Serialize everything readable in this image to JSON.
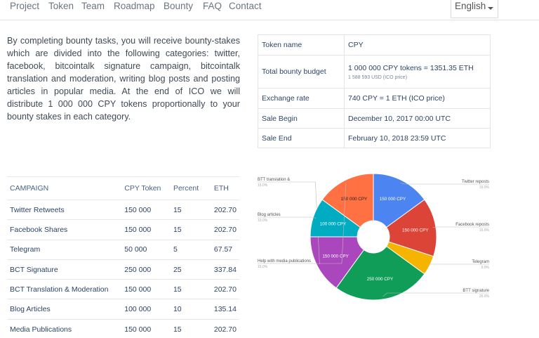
{
  "nav": {
    "items": [
      "Project",
      "Token",
      "Team",
      "Roadmap",
      "Bounty",
      "FAQ",
      "Contact"
    ],
    "language": "English"
  },
  "intro": "By completing bounty tasks, you will receive bounty-stakes which are divided into the following categories: twitter, facebook, bitcointalk signature campaign, bitcointalk translation and moderation, writing blog posts and posting articles in popular media. At the end of ICO we will distribute 1 000 000 CPY tokens proportionally to your bounty stakes in each category.",
  "info": {
    "rows": [
      {
        "key": "Token name",
        "value": "CPY",
        "sub": ""
      },
      {
        "key": "Total bounty budget",
        "value": "1 000 000 CPY tokens = 1351.35 ETH",
        "sub": "1 588 593 USD (ICO price)"
      },
      {
        "key": "Exchange rate",
        "value": "740 CPY = 1 ETH (ICO price)",
        "sub": ""
      },
      {
        "key": "Sale Begin",
        "value": "December 10, 2017 00:00 UTC",
        "sub": ""
      },
      {
        "key": "Sale End",
        "value": "February 10, 2018 23:59 UTC",
        "sub": ""
      }
    ]
  },
  "campaign": {
    "headers": [
      "CAMPAIGN",
      "CPY Token",
      "Percent",
      "ETH"
    ],
    "rows": [
      [
        "Twitter Retweets",
        "150 000",
        "15",
        "202.70"
      ],
      [
        "Facebook Shares",
        "150 000",
        "15",
        "202.70"
      ],
      [
        "Telegram",
        "50 000",
        "5",
        "67.57"
      ],
      [
        "BCT Signature",
        "250 000",
        "25",
        "337.84"
      ],
      [
        "BCT Translation & Moderation",
        "150 000",
        "15",
        "202.70"
      ],
      [
        "Blog Articles",
        "100 000",
        "10",
        "135.14"
      ],
      [
        "Media Publications",
        "150 000",
        "15",
        "202.70"
      ]
    ]
  },
  "chart_data": {
    "type": "pie",
    "donut": true,
    "slices": [
      {
        "label": "150 000 CPY",
        "value": 150000,
        "color": "#4c84f2",
        "callout": "Twitter reposts",
        "callout_sub": "15.0%",
        "text_color": "#ffffff"
      },
      {
        "label": "150 000 CPY",
        "value": 150000,
        "color": "#db4437",
        "callout": "Facebook reposts",
        "callout_sub": "15.0%",
        "text_color": "#ffffff"
      },
      {
        "label": "",
        "value": 50000,
        "color": "#f4b400",
        "callout": "Telegram",
        "callout_sub": "5.0%",
        "text_color": "#ffffff"
      },
      {
        "label": "250 000 CPY",
        "value": 250000,
        "color": "#0f9d58",
        "callout": "BTT signature",
        "callout_sub": "25.0%",
        "text_color": "#ffffff"
      },
      {
        "label": "150 000 CPY",
        "value": 150000,
        "color": "#ab47bc",
        "callout": "BTT translation &",
        "callout_sub": "15.0%",
        "text_color": "#ffffff"
      },
      {
        "label": "100 000 CPY",
        "value": 100000,
        "color": "#00acc1",
        "callout": "Blog articles",
        "callout_sub": "10.0%",
        "text_color": "#ffffff"
      },
      {
        "label": "150 000 CPY",
        "value": 150000,
        "color": "#ff7043",
        "callout": "Help with media publications",
        "callout_sub": "15.0%",
        "text_color": "#222222"
      }
    ]
  }
}
